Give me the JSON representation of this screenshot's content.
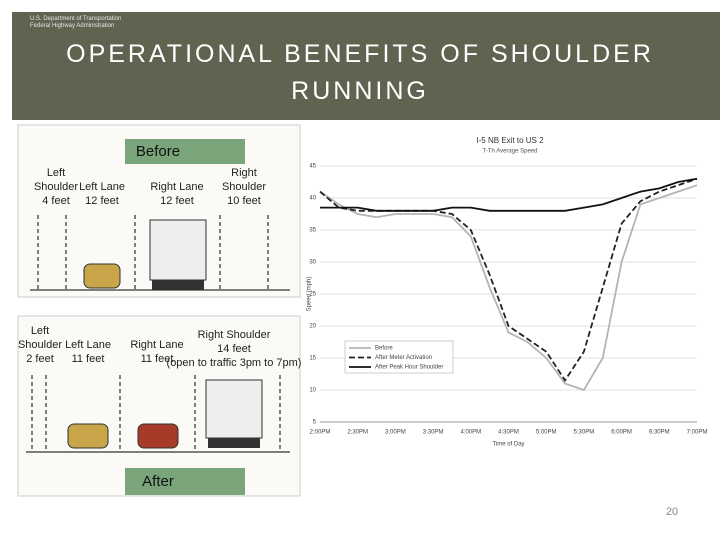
{
  "header": {
    "agency": [
      "U.S. Department of Transportation",
      "Federal Highway Administration"
    ],
    "title": "OPERATIONAL BENEFITS OF SHOULDER RUNNING"
  },
  "before": {
    "label": "Before",
    "columns": [
      [
        "Left",
        "Shoulder",
        "4 feet"
      ],
      [
        "Left Lane",
        "12 feet"
      ],
      [
        "Right Lane",
        "12 feet"
      ],
      [
        "Right",
        "Shoulder",
        "10 feet"
      ]
    ]
  },
  "after": {
    "label": "After",
    "columns": [
      [
        "Left",
        "Shoulder",
        "2 feet"
      ],
      [
        "Left Lane",
        "11 feet"
      ],
      [
        "Right Lane",
        "11 feet"
      ],
      [
        "Right Shoulder",
        "14 feet",
        "(open to traffic 3pm to 7pm)"
      ]
    ]
  },
  "chart_data": {
    "type": "line",
    "title": "I-5 NB Exit to US 2",
    "subtitle": "T-Th Average Speed",
    "y_label": "Speed (mph)",
    "x_label": "Time of Day",
    "categories": [
      "2:00PM",
      null,
      "2:30PM",
      null,
      "3:00PM",
      null,
      "3:30PM",
      null,
      "4:00PM",
      null,
      "4:30PM",
      null,
      "5:00PM",
      null,
      "5:30PM",
      null,
      "6:00PM",
      null,
      "6:30PM",
      null,
      "7:00PM"
    ],
    "ylim": [
      5,
      45
    ],
    "yticks": [
      5,
      10,
      15,
      20,
      25,
      30,
      35,
      40,
      45
    ],
    "grid": true,
    "series": [
      {
        "name": "Before",
        "color": "#b4b4b4",
        "dash": "none",
        "values": [
          41,
          39,
          37.5,
          37,
          37.5,
          37.5,
          37.5,
          37,
          34,
          26,
          19,
          17.5,
          15,
          11,
          10,
          15,
          30,
          39,
          40,
          41,
          42
        ]
      },
      {
        "name": "After Meter Activation",
        "color": "#222222",
        "dash": "6 3",
        "values": [
          41,
          38.5,
          38,
          38,
          38,
          38,
          38,
          37.5,
          35,
          28,
          20,
          18,
          16,
          11.5,
          16,
          26,
          36,
          39.5,
          41,
          42,
          43
        ]
      },
      {
        "name": "After Peak Hour Shoulder",
        "color": "#111111",
        "dash": "none",
        "values": [
          38.5,
          38.5,
          38.5,
          38,
          38,
          38,
          38,
          38.5,
          38.5,
          38,
          38,
          38,
          38,
          38,
          38.5,
          39,
          40,
          41,
          41.5,
          42.5,
          43
        ]
      }
    ]
  },
  "page_number": "20"
}
